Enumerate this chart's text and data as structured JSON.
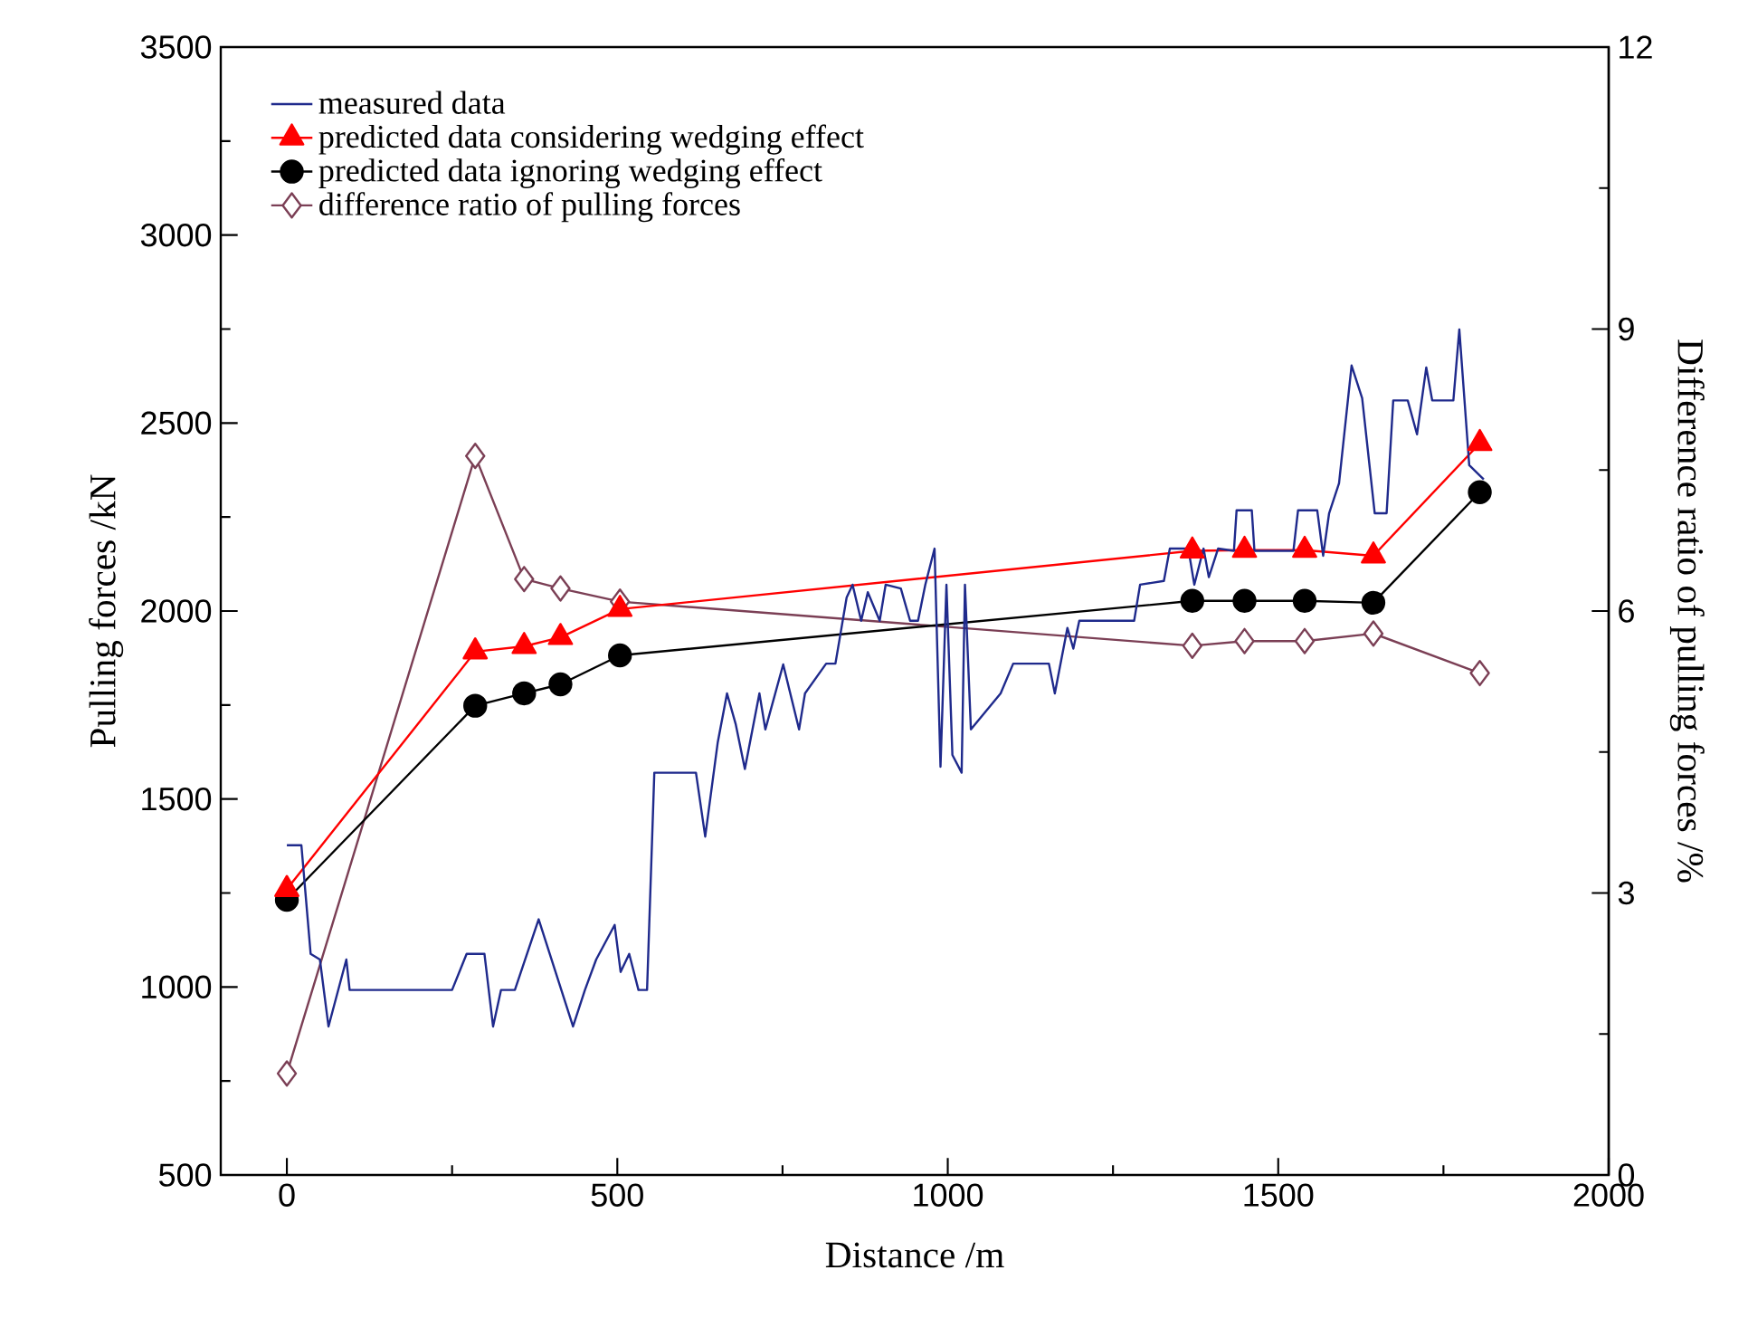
{
  "chart_data": {
    "type": "line",
    "xlabel": "Distance /m",
    "ylabel": "Pulling forces /kN",
    "y2label": "Difference ratio of pulling forces /%",
    "xlim": [
      -100,
      2000
    ],
    "xticks": [
      0,
      500,
      1000,
      1500,
      2000
    ],
    "ylim": [
      500,
      3500
    ],
    "yticks": [
      500,
      1000,
      1500,
      2000,
      2500,
      3000,
      3500
    ],
    "y2lim": [
      0,
      12
    ],
    "y2ticks": [
      0,
      3,
      6,
      9,
      12
    ],
    "legend": "top left",
    "grid": false,
    "line_style": "solid",
    "series": [
      {
        "name": "measured data",
        "color": "#1f2a8c",
        "marker": "none",
        "x": [
          0,
          22,
          36,
          50,
          63,
          90,
          95,
          250,
          272,
          299,
          312,
          324,
          345,
          381,
          433,
          451,
          468,
          496,
          505,
          518,
          532,
          545,
          556,
          619,
          633,
          652,
          666,
          679,
          693,
          715,
          724,
          751,
          775,
          784,
          816,
          830,
          847,
          856,
          869,
          879,
          897,
          906,
          929,
          943,
          955,
          966,
          980,
          989,
          998,
          1007,
          1021,
          1026,
          1035,
          1080,
          1099,
          1153,
          1162,
          1181,
          1190,
          1199,
          1282,
          1291,
          1327,
          1336,
          1364,
          1373,
          1387,
          1395,
          1409,
          1433,
          1437,
          1460,
          1464,
          1523,
          1530,
          1559,
          1568,
          1577,
          1592,
          1611,
          1627,
          1646,
          1664,
          1674,
          1696,
          1710,
          1724,
          1733,
          1765,
          1774,
          1789,
          1811
        ],
        "values": [
          1377,
          1377,
          1088,
          1073,
          895,
          1073,
          992,
          992,
          1088,
          1088,
          895,
          992,
          992,
          1180,
          895,
          992,
          1073,
          1165,
          1040,
          1088,
          992,
          992,
          1570,
          1570,
          1400,
          1651,
          1781,
          1700,
          1580,
          1781,
          1685,
          1858,
          1685,
          1781,
          1860,
          1860,
          2036,
          2070,
          1974,
          2050,
          1974,
          2070,
          2060,
          1974,
          1974,
          2070,
          2166,
          1586,
          2070,
          1617,
          1570,
          2070,
          1685,
          1781,
          1860,
          1860,
          1781,
          1955,
          1900,
          1974,
          1974,
          2070,
          2080,
          2166,
          2166,
          2070,
          2166,
          2090,
          2166,
          2160,
          2268,
          2268,
          2160,
          2160,
          2268,
          2268,
          2147,
          2260,
          2340,
          2653,
          2566,
          2260,
          2260,
          2560,
          2560,
          2470,
          2648,
          2560,
          2560,
          2749,
          2388,
          2350
        ]
      },
      {
        "name": "predicted data considering wedging effect",
        "color": "#ff0000",
        "marker": "triangle",
        "x": [
          0,
          285,
          359,
          414,
          504,
          1370,
          1449,
          1540,
          1644,
          1805
        ],
        "values": [
          1260,
          1892,
          1906,
          1930,
          2005,
          2160,
          2162,
          2162,
          2147,
          2446
        ]
      },
      {
        "name": "predicted data ignoring wedging effect",
        "color": "#000000",
        "marker": "circle",
        "x": [
          0,
          285,
          359,
          414,
          504,
          1370,
          1449,
          1540,
          1644,
          1805
        ],
        "values": [
          1232,
          1748,
          1781,
          1805,
          1882,
          2027,
          2027,
          2027,
          2022,
          2316
        ]
      },
      {
        "name": "difference ratio of pulling forces",
        "color": "#7b3f55",
        "marker": "diamond",
        "axis": "y2",
        "x": [
          0,
          285,
          359,
          414,
          504,
          1370,
          1449,
          1540,
          1644,
          1805
        ],
        "values": [
          1.08,
          7.65,
          6.34,
          6.24,
          6.1,
          5.63,
          5.68,
          5.68,
          5.76,
          5.34
        ]
      }
    ]
  }
}
